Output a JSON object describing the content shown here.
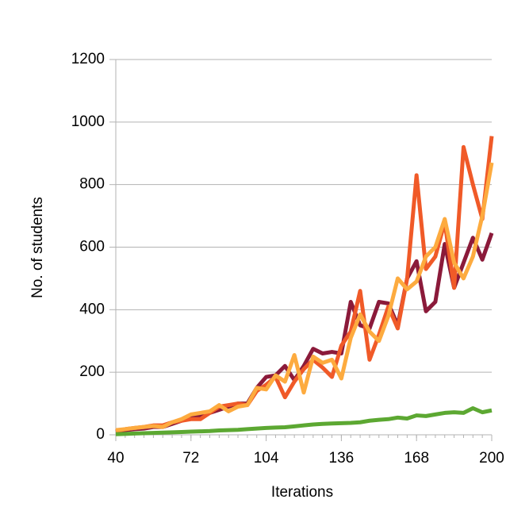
{
  "chart_data": {
    "type": "line",
    "x_label": "Iterations",
    "y_label": "No. of students",
    "x": [
      40,
      44,
      48,
      52,
      56,
      60,
      64,
      68,
      72,
      76,
      80,
      84,
      88,
      92,
      96,
      100,
      104,
      108,
      112,
      116,
      120,
      124,
      128,
      132,
      136,
      140,
      144,
      148,
      152,
      156,
      160,
      164,
      168,
      172,
      176,
      180,
      184,
      188,
      192,
      196,
      200
    ],
    "series": [
      {
        "color": "#8b1a3a",
        "values": [
          10,
          15,
          18,
          20,
          25,
          25,
          35,
          45,
          55,
          60,
          70,
          80,
          90,
          100,
          100,
          150,
          185,
          190,
          220,
          175,
          220,
          275,
          260,
          265,
          260,
          425,
          350,
          340,
          425,
          420,
          350,
          500,
          555,
          395,
          425,
          610,
          470,
          550,
          630,
          560,
          645
        ]
      },
      {
        "color": "#f05a28",
        "values": [
          12,
          18,
          22,
          25,
          30,
          30,
          40,
          45,
          50,
          50,
          70,
          90,
          95,
          100,
          95,
          140,
          160,
          185,
          120,
          170,
          210,
          240,
          215,
          185,
          285,
          330,
          460,
          240,
          320,
          410,
          340,
          500,
          830,
          530,
          570,
          680,
          470,
          920,
          800,
          690,
          955
        ]
      },
      {
        "color": "#fdab3f",
        "values": [
          15,
          18,
          22,
          25,
          28,
          25,
          40,
          50,
          65,
          70,
          75,
          95,
          75,
          90,
          95,
          150,
          145,
          190,
          170,
          255,
          135,
          250,
          230,
          240,
          180,
          310,
          385,
          330,
          300,
          380,
          500,
          465,
          490,
          570,
          600,
          690,
          550,
          500,
          570,
          700,
          870
        ]
      },
      {
        "color": "#5ca832",
        "values": [
          2,
          3,
          4,
          5,
          6,
          7,
          8,
          9,
          10,
          11,
          12,
          14,
          15,
          16,
          18,
          20,
          22,
          23,
          24,
          27,
          30,
          33,
          35,
          36,
          37,
          38,
          40,
          45,
          48,
          50,
          55,
          52,
          62,
          60,
          65,
          70,
          72,
          70,
          85,
          72,
          78
        ]
      }
    ],
    "xlim": [
      40,
      200
    ],
    "xticks": [
      40,
      72,
      104,
      136,
      168,
      200
    ],
    "ylim": [
      0,
      1200
    ],
    "yticks": [
      0,
      200,
      400,
      600,
      800,
      1000,
      1200
    ],
    "grid": true
  }
}
